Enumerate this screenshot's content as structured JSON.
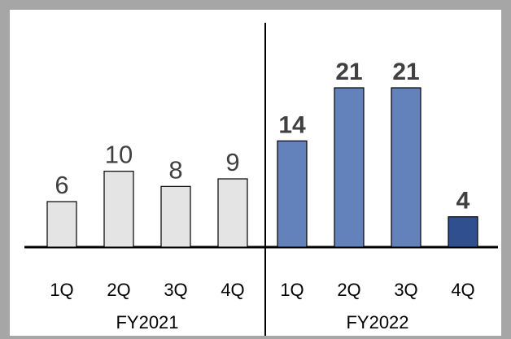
{
  "chart_data": {
    "type": "bar",
    "groups": [
      {
        "label": "FY2021",
        "categories": [
          "1Q",
          "2Q",
          "3Q",
          "4Q"
        ],
        "values": [
          6,
          10,
          8,
          9
        ],
        "colors": [
          "#e4e4e4",
          "#e4e4e4",
          "#e4e4e4",
          "#e4e4e4"
        ],
        "bold_labels": false
      },
      {
        "label": "FY2022",
        "categories": [
          "1Q",
          "2Q",
          "3Q",
          "4Q"
        ],
        "values": [
          14,
          21,
          21,
          4
        ],
        "colors": [
          "#6381ba",
          "#6381ba",
          "#6381ba",
          "#2f4f8f"
        ],
        "bold_labels": true
      }
    ],
    "ylim": [
      0,
      21
    ],
    "grid": false,
    "legend": "none"
  }
}
